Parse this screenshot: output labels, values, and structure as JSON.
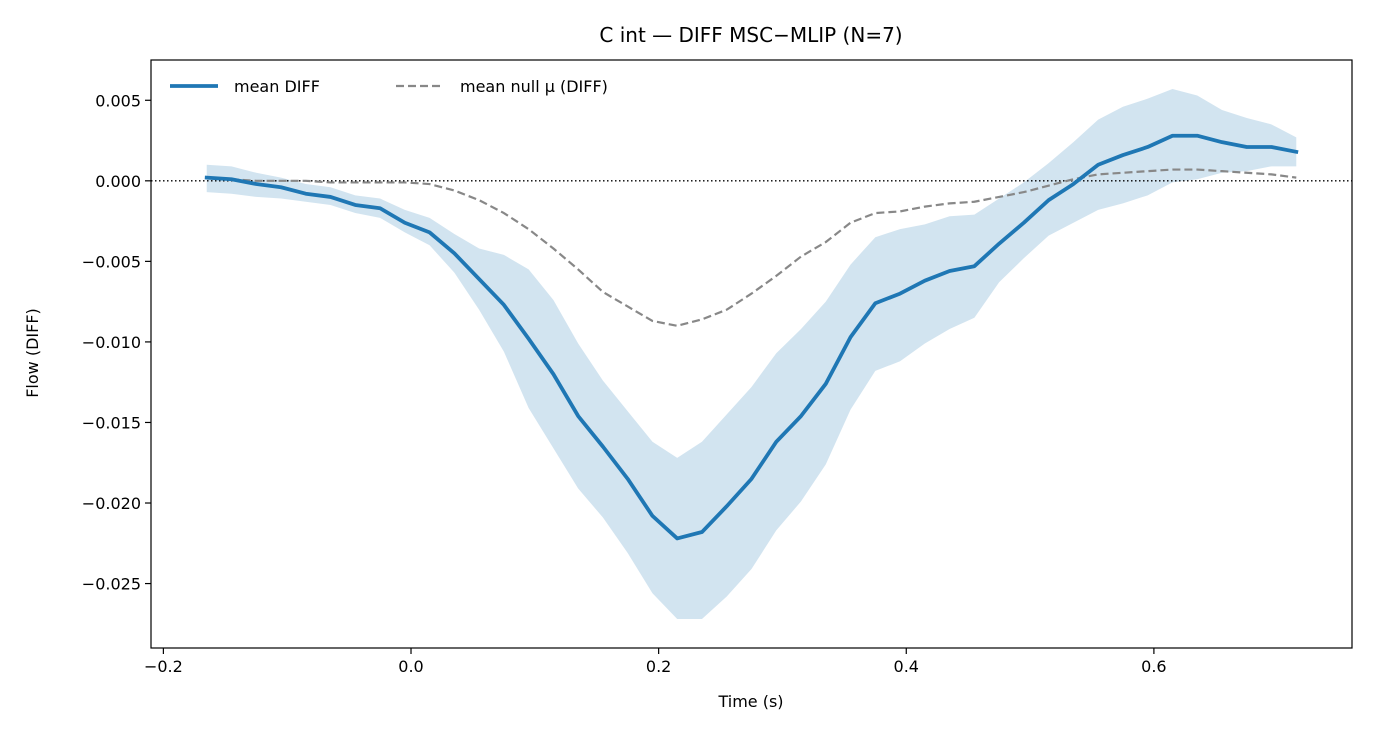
{
  "chart_data": {
    "type": "line",
    "title": "C int — DIFF MSC−MLIP (N=7)",
    "xlabel": "Time (s)",
    "ylabel": "Flow (DIFF)",
    "xlim": [
      -0.21,
      0.76
    ],
    "ylim": [
      -0.029,
      0.0075
    ],
    "xticks": [
      -0.2,
      0.0,
      0.2,
      0.4,
      0.6
    ],
    "xtick_labels": [
      "−0.2",
      "0.0",
      "0.2",
      "0.4",
      "0.6"
    ],
    "yticks": [
      0.005,
      0.0,
      -0.005,
      -0.01,
      -0.015,
      -0.02,
      -0.025
    ],
    "ytick_labels": [
      "0.005",
      "0.000",
      "−0.005",
      "−0.010",
      "−0.015",
      "−0.020",
      "−0.025"
    ],
    "grid": false,
    "legend_position": "top-left",
    "reference_line": {
      "y": 0.0,
      "style": "dotted",
      "color": "#000000"
    },
    "x": [
      -0.165,
      -0.145,
      -0.125,
      -0.105,
      -0.085,
      -0.065,
      -0.045,
      -0.025,
      -0.005,
      0.015,
      0.035,
      0.055,
      0.075,
      0.095,
      0.115,
      0.135,
      0.155,
      0.175,
      0.195,
      0.215,
      0.235,
      0.255,
      0.275,
      0.295,
      0.315,
      0.335,
      0.355,
      0.375,
      0.395,
      0.415,
      0.435,
      0.455,
      0.475,
      0.495,
      0.515,
      0.535,
      0.555,
      0.575,
      0.595,
      0.615,
      0.635,
      0.655,
      0.675,
      0.695,
      0.715
    ],
    "series": [
      {
        "name": "mean DIFF",
        "color": "#1f77b4",
        "style": "solid",
        "values": [
          0.0002,
          0.0001,
          -0.0002,
          -0.0004,
          -0.0008,
          -0.001,
          -0.0015,
          -0.0017,
          -0.0026,
          -0.0032,
          -0.0045,
          -0.0061,
          -0.0077,
          -0.0098,
          -0.012,
          -0.0146,
          -0.0165,
          -0.0185,
          -0.0208,
          -0.0222,
          -0.0218,
          -0.0202,
          -0.0185,
          -0.0162,
          -0.0146,
          -0.0126,
          -0.0097,
          -0.0076,
          -0.007,
          -0.0062,
          -0.0056,
          -0.0053,
          -0.0039,
          -0.0026,
          -0.0012,
          -0.0002,
          0.001,
          0.0016,
          0.0021,
          0.0028,
          0.0028,
          0.0024,
          0.0021,
          0.0021,
          0.0018
        ],
        "band_upper": [
          0.001,
          0.0009,
          0.0005,
          0.0002,
          -0.0002,
          -0.0004,
          -0.0009,
          -0.0011,
          -0.0018,
          -0.0023,
          -0.0033,
          -0.0042,
          -0.0046,
          -0.0055,
          -0.0074,
          -0.0101,
          -0.0124,
          -0.0143,
          -0.0162,
          -0.0172,
          -0.0162,
          -0.0145,
          -0.0128,
          -0.0107,
          -0.0092,
          -0.0075,
          -0.0052,
          -0.0035,
          -0.003,
          -0.0027,
          -0.0022,
          -0.0021,
          -0.0011,
          -0.0001,
          0.0011,
          0.0024,
          0.0038,
          0.0046,
          0.0051,
          0.0057,
          0.0053,
          0.0044,
          0.0039,
          0.0035,
          0.0027
        ],
        "band_lower": [
          -0.0007,
          -0.0008,
          -0.001,
          -0.0011,
          -0.0013,
          -0.0015,
          -0.002,
          -0.0023,
          -0.0032,
          -0.004,
          -0.0057,
          -0.008,
          -0.0106,
          -0.0141,
          -0.0166,
          -0.0191,
          -0.0209,
          -0.0231,
          -0.0256,
          -0.0272,
          -0.0272,
          -0.0258,
          -0.0241,
          -0.0217,
          -0.0199,
          -0.0176,
          -0.0142,
          -0.0118,
          -0.0112,
          -0.0101,
          -0.0092,
          -0.0085,
          -0.0063,
          -0.0048,
          -0.0034,
          -0.0026,
          -0.0018,
          -0.0014,
          -0.0009,
          -0.0001,
          0.0001,
          0.0005,
          0.0006,
          0.0009,
          0.0009
        ]
      },
      {
        "name": "mean null μ (DIFF)",
        "color": "#888888",
        "style": "dashed",
        "values": [
          0.0002,
          0.0001,
          0.0,
          0.0,
          0.0,
          -0.0001,
          -0.0001,
          -0.0001,
          -0.0001,
          -0.0002,
          -0.0006,
          -0.0012,
          -0.002,
          -0.003,
          -0.0042,
          -0.0055,
          -0.0069,
          -0.0078,
          -0.0087,
          -0.009,
          -0.0086,
          -0.008,
          -0.007,
          -0.0059,
          -0.0047,
          -0.0038,
          -0.0026,
          -0.002,
          -0.0019,
          -0.0016,
          -0.0014,
          -0.0013,
          -0.001,
          -0.0007,
          -0.0003,
          0.0001,
          0.0004,
          0.0005,
          0.0006,
          0.0007,
          0.0007,
          0.0006,
          0.0005,
          0.0004,
          0.0002
        ]
      }
    ]
  }
}
